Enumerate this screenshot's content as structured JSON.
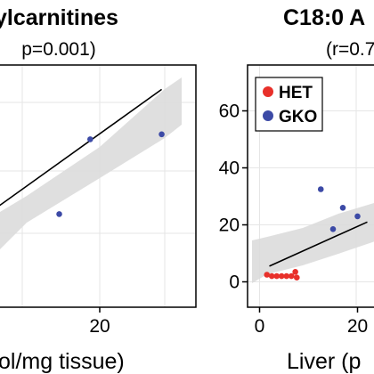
{
  "chart_data": [
    {
      "type": "scatter",
      "title": "ylcarnitines",
      "subtitle": "p=0.001)",
      "xlabel": "ol/mg tissue)",
      "ylabel": "",
      "x_ticks": [
        20
      ],
      "y_ticks": [],
      "grid": true,
      "series": [
        {
          "color": "#3C4AA6",
          "points": [
            [
              11.5,
              21
            ],
            [
              18,
              36
            ],
            [
              33,
              37
            ]
          ]
        }
      ],
      "regression_line": {
        "x": [
          -5,
          33
        ],
        "y": [
          20,
          46
        ]
      },
      "confidence_band": true
    },
    {
      "type": "scatter",
      "title": "C18:0 A",
      "subtitle": "(r=0.7",
      "xlabel": "Liver (p",
      "ylabel": "",
      "x_ticks": [
        0,
        20
      ],
      "y_ticks": [
        0,
        20,
        40,
        60
      ],
      "grid": true,
      "legend_position": "top-left",
      "series": [
        {
          "name": "HET",
          "color": "#E8302A",
          "points": [
            [
              1.5,
              2.5
            ],
            [
              2.5,
              2
            ],
            [
              3.5,
              2
            ],
            [
              4.5,
              2
            ],
            [
              5.5,
              2
            ],
            [
              6.5,
              2
            ],
            [
              7.3,
              3.5
            ],
            [
              7.6,
              1.5
            ]
          ]
        },
        {
          "name": "GKO",
          "color": "#3C4AA6",
          "points": [
            [
              12.5,
              32.5
            ],
            [
              15,
              18.5
            ],
            [
              17,
              26
            ],
            [
              20,
              23
            ]
          ]
        }
      ],
      "regression_line": {
        "x": [
          2,
          22
        ],
        "y": [
          5.5,
          21
        ]
      },
      "confidence_band": true
    }
  ],
  "colors": {
    "band": "#D9D9D9",
    "grid": "#E6E6E6",
    "axis": "#000000",
    "fit": "#000000"
  }
}
